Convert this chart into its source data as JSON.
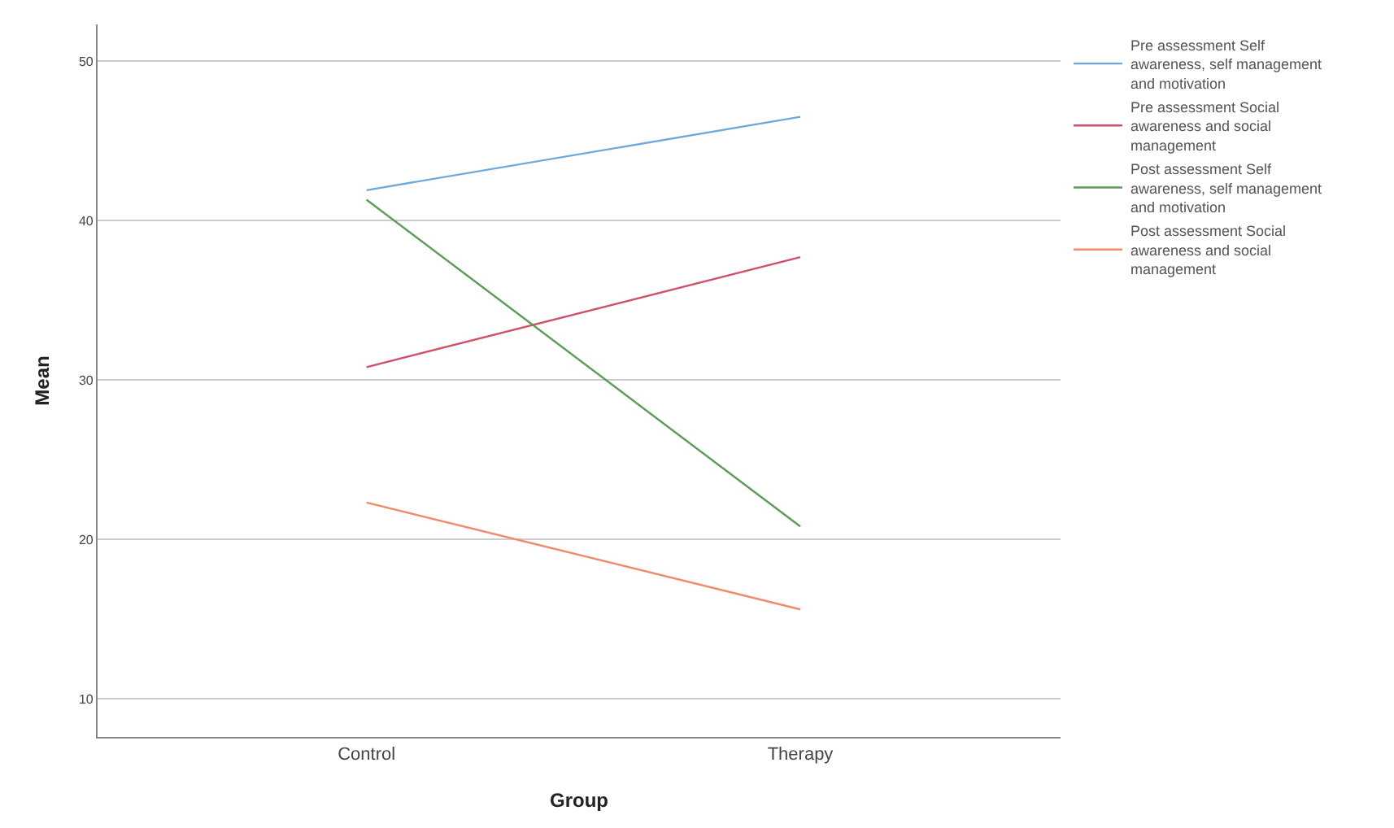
{
  "chart_data": {
    "type": "line",
    "xlabel": "Group",
    "ylabel": "Mean",
    "categories": [
      "Control",
      "Therapy"
    ],
    "series": [
      {
        "name": "Pre assessment Self awareness, self management and motivation",
        "color": "#6fa8dc",
        "values": [
          41.9,
          46.5
        ]
      },
      {
        "name": "Pre assessment Social awareness and social management",
        "color": "#d0506a",
        "values": [
          30.8,
          37.7
        ]
      },
      {
        "name": "Post assessment Self awareness, self management and motivation",
        "color": "#5a9a5a",
        "values": [
          41.3,
          20.8
        ]
      },
      {
        "name": "Post assessment Social awareness and social management",
        "color": "#f08a6a",
        "values": [
          22.3,
          15.6
        ]
      }
    ],
    "ylim": [
      7.6,
      52.3
    ],
    "yticks": [
      10,
      20,
      30,
      40,
      50
    ],
    "grid": "y",
    "legend": "top right",
    "marker": "none",
    "line_style": "solid"
  }
}
